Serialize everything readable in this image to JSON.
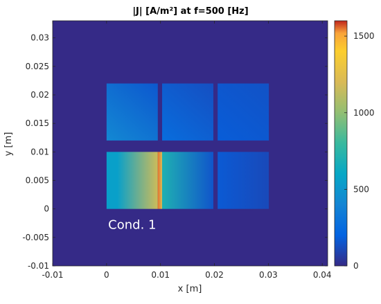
{
  "chart_data": {
    "type": "heatmap",
    "title": "|J| [A/m²] at f=500 [Hz]",
    "xlabel": "x [m]",
    "ylabel": "y [m]",
    "xlim": [
      -0.01,
      0.041
    ],
    "ylim": [
      -0.01,
      0.033
    ],
    "x_ticks": [
      -0.01,
      0,
      0.01,
      0.02,
      0.03,
      0.04
    ],
    "x_tick_labels": [
      "-0.01",
      "0",
      "0.01",
      "0.02",
      "0.03",
      "0.04"
    ],
    "y_ticks": [
      -0.01,
      -0.005,
      0,
      0.005,
      0.01,
      0.015,
      0.02,
      0.025,
      0.03
    ],
    "y_tick_labels": [
      "-0.01",
      "-0.005",
      "0",
      "0.005",
      "0.01",
      "0.015",
      "0.02",
      "0.025",
      "0.03"
    ],
    "colorbar": {
      "colormap": "parula",
      "range": [
        0,
        1600
      ],
      "ticks": [
        0,
        500,
        1000,
        1500
      ],
      "tick_labels": [
        "0",
        "500",
        "1000",
        "1500"
      ]
    },
    "background_value": 0,
    "annotation": {
      "text": "Cond. 1",
      "x": 0.0003,
      "y": -0.0035
    },
    "patches": [
      {
        "name": "conductor-1-top",
        "x": [
          0,
          0.0095
        ],
        "y": [
          0.012,
          0.022
        ],
        "gradient": [
          [
            0,
            0.012,
            420
          ],
          [
            0.0095,
            0.022,
            160
          ]
        ]
      },
      {
        "name": "conductor-2-top",
        "x": [
          0.0103,
          0.0198
        ],
        "y": [
          0.012,
          0.022
        ],
        "gradient": [
          [
            0.0103,
            0.012,
            260
          ],
          [
            0.0198,
            0.022,
            130
          ]
        ]
      },
      {
        "name": "conductor-3-top",
        "x": [
          0.0206,
          0.0301
        ],
        "y": [
          0.012,
          0.022
        ],
        "gradient": [
          [
            0.0206,
            0.012,
            180
          ],
          [
            0.0301,
            0.022,
            140
          ]
        ]
      },
      {
        "name": "conductor-1-bottom",
        "x": [
          0,
          0.0095
        ],
        "y": [
          0,
          0.01
        ],
        "gradient": [
          [
            0.002,
            0.005,
            560
          ],
          [
            0.0093,
            0.005,
            1150
          ]
        ]
      },
      {
        "name": "conductor-1-tip",
        "x": [
          0.0095,
          0.0103
        ],
        "y": [
          0,
          0.01
        ],
        "gradient": [
          [
            0.0095,
            0.005,
            1550
          ],
          [
            0.0103,
            0.005,
            1200
          ]
        ]
      },
      {
        "name": "conductor-2-bottom",
        "x": [
          0.0103,
          0.0198
        ],
        "y": [
          0,
          0.01
        ],
        "gradient": [
          [
            0.0103,
            0.005,
            700
          ],
          [
            0.0198,
            0.005,
            150
          ]
        ]
      },
      {
        "name": "conductor-3-bottom",
        "x": [
          0.0206,
          0.0301
        ],
        "y": [
          0,
          0.01
        ],
        "gradient": [
          [
            0.0206,
            0.005,
            170
          ],
          [
            0.0301,
            0.005,
            110
          ]
        ]
      }
    ]
  }
}
